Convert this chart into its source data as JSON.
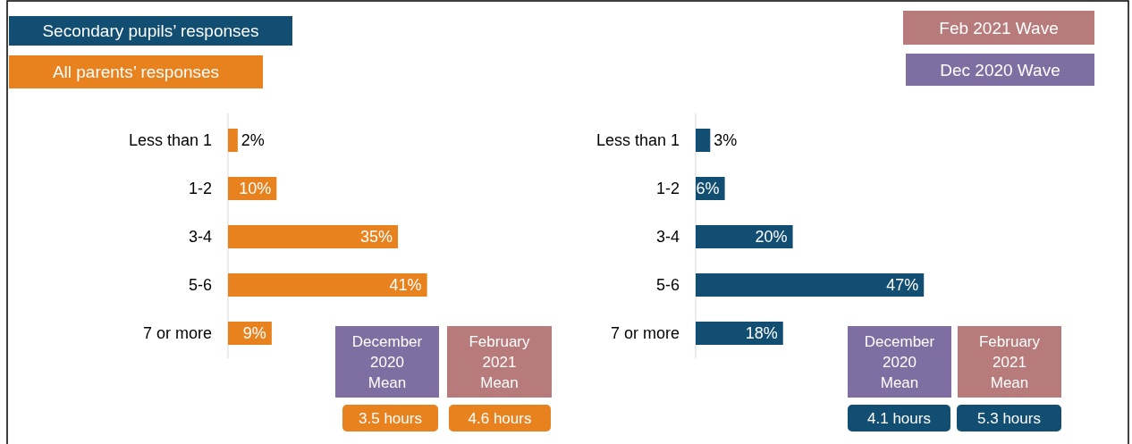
{
  "chart_data": [
    {
      "type": "bar",
      "orientation": "horizontal",
      "categories": [
        "Less than 1",
        "1-2",
        "3-4",
        "5-6",
        "7 or more"
      ],
      "series": [
        {
          "color": "#e8821e",
          "values": [
            2,
            10,
            35,
            41,
            9
          ],
          "value_labels": [
            "2%",
            "10%",
            "35%",
            "41%",
            "9%"
          ]
        }
      ],
      "annotations": [
        "All parents’ responses",
        "December 2020 Mean",
        "3.5 hours",
        "February 2021 Mean",
        "4.6 hours"
      ]
    },
    {
      "type": "bar",
      "orientation": "horizontal",
      "categories": [
        "Less than 1",
        "1-2",
        "3-4",
        "5-6",
        "7 or more"
      ],
      "series": [
        {
          "color": "#124e72",
          "values": [
            3,
            6,
            20,
            47,
            18
          ],
          "value_labels": [
            "3%",
            "6%",
            "20%",
            "47%",
            "18%"
          ]
        }
      ],
      "annotations": [
        "Secondary pupils’ responses",
        "Feb 2021 Wave",
        "Dec 2020 Wave",
        "December 2020 Mean",
        "4.1 hours",
        "February 2021 Mean",
        "5.3 hours"
      ]
    }
  ]
}
